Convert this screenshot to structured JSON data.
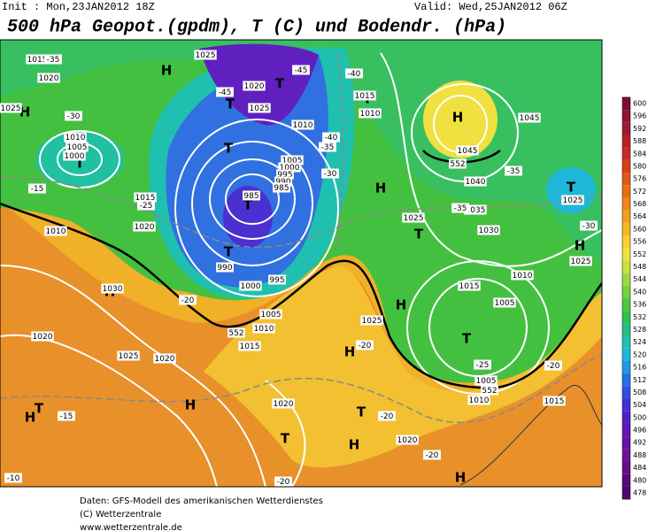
{
  "header": {
    "init": "Init : Mon,23JAN2012 18Z",
    "valid": "Valid: Wed,25JAN2012 06Z",
    "title": "500 hPa Geopot.(gpdm), T (C) und Bodendr. (hPa)"
  },
  "map": {
    "labels": [
      "H",
      "H",
      "H",
      "H",
      "H",
      "H",
      "H",
      "H",
      "H",
      "H",
      "H",
      "H",
      "T",
      "T",
      "T",
      "T",
      "T",
      "T",
      "T",
      "T",
      "T",
      "T",
      "T",
      "T",
      "T",
      "1015",
      "1020",
      "1025",
      "1020",
      "1025",
      "1015",
      "1010",
      "1045",
      "1045",
      "1040",
      "1035",
      "1030",
      "1025",
      "1025",
      "1010",
      "1005",
      "1000",
      "1015",
      "1020",
      "1010",
      "1005",
      "1000",
      "995",
      "990",
      "985",
      "985",
      "990",
      "1000",
      "995",
      "1005",
      "1010",
      "1015",
      "1020",
      "1025",
      "1030",
      "1020",
      "1015",
      "1010",
      "1005",
      "1025",
      "1020",
      "1020",
      "1015",
      "1005",
      "1010",
      "1025",
      "1025",
      "1010",
      "-35",
      "-30",
      "-45",
      "-40",
      "-45",
      "-40",
      "-35",
      "-30",
      "-35",
      "-35",
      "-30",
      "-25",
      "-15",
      "-20",
      "-25",
      "-20",
      "-20",
      "-20",
      "-15",
      "-10",
      "-20",
      "-20",
      "552",
      "552",
      "552"
    ]
  },
  "legend": {
    "ticks": [
      600,
      596,
      592,
      588,
      584,
      580,
      576,
      572,
      568,
      564,
      560,
      556,
      552,
      548,
      544,
      540,
      536,
      532,
      528,
      524,
      520,
      516,
      512,
      508,
      504,
      500,
      496,
      492,
      488,
      484,
      480,
      478
    ],
    "colors": [
      "#7a0f3a",
      "#8c1538",
      "#a01a30",
      "#b52028",
      "#c82a20",
      "#d83c18",
      "#e05a14",
      "#e87010",
      "#ee8818",
      "#f0a020",
      "#f4b828",
      "#f8d030",
      "#f0e040",
      "#c8e040",
      "#a0d840",
      "#78d040",
      "#50c840",
      "#30c050",
      "#20c080",
      "#20c0b0",
      "#20b8d8",
      "#2098e8",
      "#2070e8",
      "#3050e0",
      "#4030d8",
      "#5020c8",
      "#6018b8",
      "#6a10a8",
      "#701098",
      "#680c88",
      "#5c0878",
      "#500870"
    ]
  },
  "footer": {
    "lines": [
      "Daten: GFS-Modell des amerikanischen Wetterdienstes",
      "(C) Wetterzentrale",
      "www.wetterzentrale.de"
    ]
  }
}
